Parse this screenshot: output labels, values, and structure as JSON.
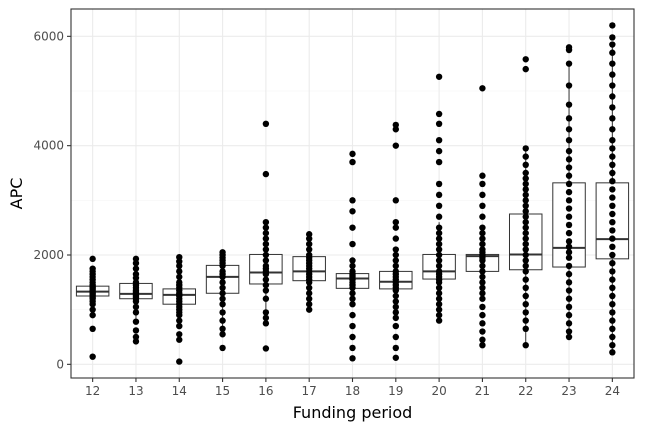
{
  "chart_data": {
    "type": "boxplot",
    "title": "",
    "xlabel": "Funding period",
    "ylabel": "APC",
    "ylim": [
      -250,
      6500
    ],
    "y_ticks": [
      0,
      2000,
      4000,
      6000
    ],
    "grid": true,
    "theme": "bw",
    "colors": {
      "panel_border": "#333333",
      "grid_major": "#ebebeb",
      "grid_minor": "#f5f5f5",
      "box_stroke": "#333333",
      "box_fill": "#ffffff",
      "point": "#000000",
      "tick_label": "#4d4d4d"
    },
    "categories": [
      "12",
      "13",
      "14",
      "15",
      "16",
      "17",
      "18",
      "19",
      "20",
      "21",
      "22",
      "23",
      "24"
    ],
    "boxes": [
      {
        "category": "12",
        "q1": 1250,
        "median": 1330,
        "q3": 1430,
        "whisker_low": 1000,
        "whisker_high": 1700
      },
      {
        "category": "13",
        "q1": 1200,
        "median": 1290,
        "q3": 1480,
        "whisker_low": 780,
        "whisker_high": 1900
      },
      {
        "category": "14",
        "q1": 1100,
        "median": 1270,
        "q3": 1380,
        "whisker_low": 700,
        "whisker_high": 1850
      },
      {
        "category": "15",
        "q1": 1300,
        "median": 1600,
        "q3": 1810,
        "whisker_low": 600,
        "whisker_high": 2050
      },
      {
        "category": "16",
        "q1": 1470,
        "median": 1680,
        "q3": 2010,
        "whisker_low": 750,
        "whisker_high": 2650
      },
      {
        "category": "17",
        "q1": 1530,
        "median": 1700,
        "q3": 1970,
        "whisker_low": 1000,
        "whisker_high": 2380
      },
      {
        "category": "18",
        "q1": 1390,
        "median": 1570,
        "q3": 1660,
        "whisker_low": 1100,
        "whisker_high": 1950
      },
      {
        "category": "19",
        "q1": 1380,
        "median": 1510,
        "q3": 1700,
        "whisker_low": 1000,
        "whisker_high": 2100
      },
      {
        "category": "20",
        "q1": 1560,
        "median": 1700,
        "q3": 2010,
        "whisker_low": 1000,
        "whisker_high": 2600
      },
      {
        "category": "21",
        "q1": 1700,
        "median": 1980,
        "q3": 2010,
        "whisker_low": 1300,
        "whisker_high": 2500
      },
      {
        "category": "22",
        "q1": 1730,
        "median": 2010,
        "q3": 2750,
        "whisker_low": 350,
        "whisker_high": 3900
      },
      {
        "category": "23",
        "q1": 1780,
        "median": 2130,
        "q3": 3320,
        "whisker_low": 500,
        "whisker_high": 5500
      },
      {
        "category": "24",
        "q1": 1930,
        "median": 2290,
        "q3": 3320,
        "whisker_low": 250,
        "whisker_high": 5800
      }
    ],
    "points": [
      {
        "category": "12",
        "values": [
          140,
          650,
          900,
          1000,
          1100,
          1150,
          1200,
          1220,
          1250,
          1280,
          1300,
          1320,
          1350,
          1380,
          1400,
          1420,
          1450,
          1500,
          1550,
          1600,
          1650,
          1700,
          1750,
          1930
        ]
      },
      {
        "category": "13",
        "values": [
          420,
          500,
          620,
          780,
          950,
          1050,
          1150,
          1200,
          1230,
          1260,
          1290,
          1320,
          1350,
          1400,
          1450,
          1500,
          1580,
          1650,
          1750,
          1850,
          1930
        ]
      },
      {
        "category": "14",
        "values": [
          50,
          450,
          550,
          700,
          800,
          900,
          950,
          1000,
          1050,
          1100,
          1150,
          1200,
          1250,
          1270,
          1300,
          1350,
          1400,
          1450,
          1500,
          1600,
          1700,
          1800,
          1880,
          1960
        ]
      },
      {
        "category": "15",
        "values": [
          300,
          550,
          650,
          800,
          950,
          1100,
          1200,
          1300,
          1400,
          1500,
          1600,
          1650,
          1700,
          1800,
          1850,
          1900,
          1950,
          2000,
          2050
        ]
      },
      {
        "category": "16",
        "values": [
          290,
          750,
          850,
          950,
          1200,
          1350,
          1450,
          1550,
          1650,
          1700,
          1750,
          1800,
          1900,
          2000,
          2100,
          2200,
          2300,
          2400,
          2500,
          2600,
          3480,
          4400
        ]
      },
      {
        "category": "17",
        "values": [
          1000,
          1100,
          1200,
          1300,
          1400,
          1500,
          1550,
          1600,
          1650,
          1700,
          1750,
          1800,
          1850,
          1900,
          1950,
          2000,
          2100,
          2200,
          2300,
          2380
        ]
      },
      {
        "category": "18",
        "values": [
          110,
          300,
          500,
          700,
          900,
          1100,
          1200,
          1300,
          1400,
          1450,
          1500,
          1550,
          1600,
          1620,
          1650,
          1700,
          1800,
          1900,
          2200,
          2500,
          2800,
          3000,
          3700,
          3850
        ]
      },
      {
        "category": "19",
        "values": [
          120,
          300,
          500,
          700,
          850,
          950,
          1050,
          1150,
          1250,
          1350,
          1400,
          1450,
          1500,
          1550,
          1600,
          1650,
          1700,
          1800,
          1900,
          2000,
          2100,
          2300,
          2500,
          2600,
          3000,
          4000,
          4300,
          4380
        ]
      },
      {
        "category": "20",
        "values": [
          800,
          900,
          1000,
          1100,
          1200,
          1300,
          1400,
          1500,
          1550,
          1600,
          1650,
          1700,
          1800,
          1900,
          2000,
          2100,
          2200,
          2300,
          2400,
          2500,
          2700,
          2900,
          3100,
          3300,
          3700,
          3900,
          4100,
          4400,
          4580,
          5260
        ]
      },
      {
        "category": "21",
        "values": [
          350,
          450,
          600,
          750,
          900,
          1050,
          1200,
          1300,
          1400,
          1500,
          1600,
          1700,
          1800,
          1900,
          1950,
          2000,
          2050,
          2100,
          2200,
          2300,
          2400,
          2500,
          2700,
          2900,
          3100,
          3300,
          3450,
          5050
        ]
      },
      {
        "category": "22",
        "values": [
          350,
          650,
          800,
          950,
          1100,
          1250,
          1400,
          1550,
          1700,
          1800,
          1900,
          2000,
          2100,
          2200,
          2300,
          2400,
          2500,
          2600,
          2700,
          2800,
          2900,
          3000,
          3100,
          3200,
          3300,
          3400,
          3500,
          3650,
          3800,
          3950,
          5400,
          5580
        ]
      },
      {
        "category": "23",
        "values": [
          500,
          600,
          750,
          900,
          1050,
          1200,
          1350,
          1500,
          1650,
          1800,
          1950,
          2050,
          2150,
          2250,
          2400,
          2550,
          2700,
          2850,
          3000,
          3150,
          3300,
          3450,
          3600,
          3750,
          3900,
          4100,
          4300,
          4500,
          4750,
          5100,
          5500,
          5750,
          5800
        ]
      },
      {
        "category": "24",
        "values": [
          220,
          350,
          500,
          650,
          800,
          950,
          1100,
          1250,
          1400,
          1550,
          1700,
          1850,
          2000,
          2150,
          2300,
          2450,
          2600,
          2750,
          2900,
          3050,
          3200,
          3350,
          3500,
          3650,
          3800,
          3950,
          4100,
          4300,
          4500,
          4700,
          4900,
          5100,
          5300,
          5500,
          5700,
          5850,
          5980,
          6200
        ]
      }
    ]
  }
}
